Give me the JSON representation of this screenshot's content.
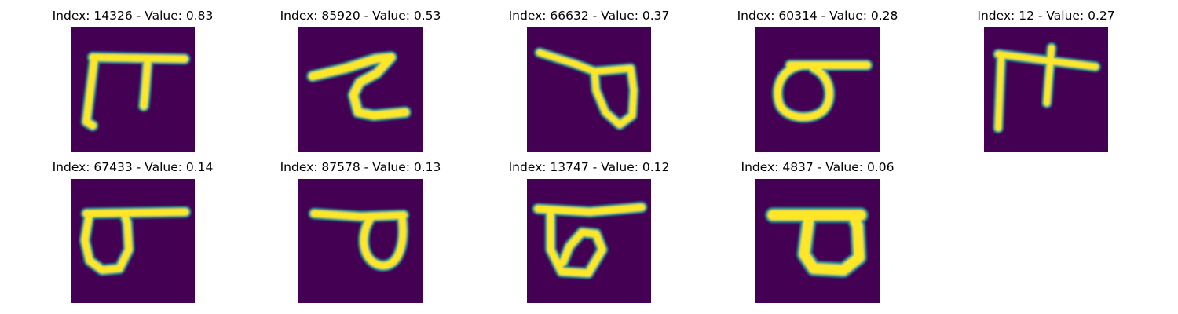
{
  "colors": {
    "background": "#440154",
    "stroke_core": "#fde725",
    "stroke_edge": "#21918c",
    "stroke_mid": "#5ec962"
  },
  "images": [
    {
      "title": "Index: 14326 - Value: 0.83"
    },
    {
      "title": "Index: 85920 - Value: 0.53"
    },
    {
      "title": "Index: 66632 - Value: 0.37"
    },
    {
      "title": "Index: 60314 - Value: 0.28"
    },
    {
      "title": "Index: 12 - Value: 0.27"
    },
    {
      "title": "Index: 67433 - Value: 0.14"
    },
    {
      "title": "Index: 87578 - Value: 0.13"
    },
    {
      "title": "Index: 13747 - Value: 0.12"
    },
    {
      "title": "Index: 4837 - Value: 0.06"
    }
  ]
}
